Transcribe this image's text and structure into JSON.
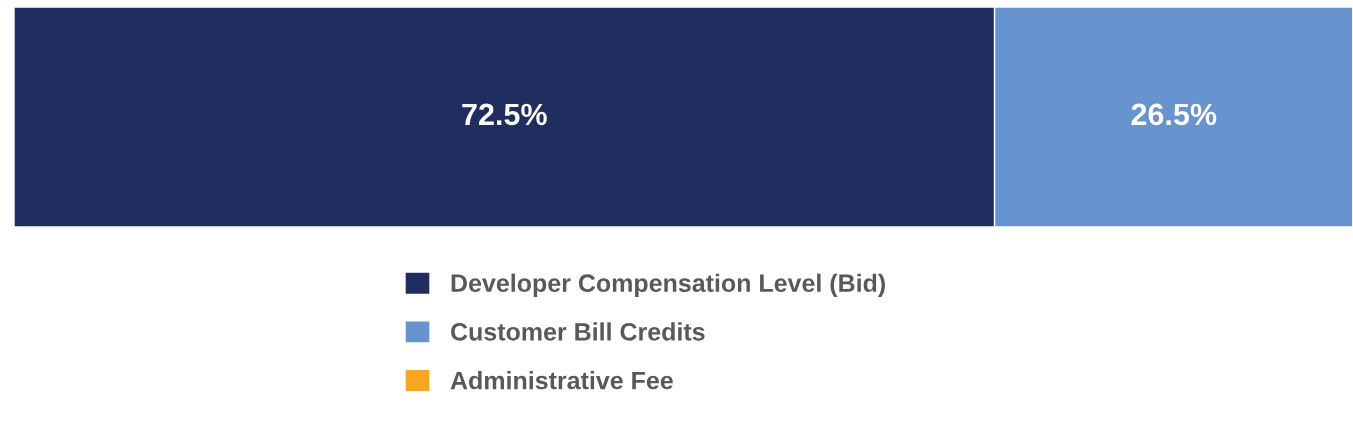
{
  "chart_data": {
    "type": "bar",
    "orientation": "horizontal",
    "stacked": true,
    "categories": [
      null
    ],
    "series": [
      {
        "name": "Developer Compensation Level (Bid)",
        "color": "#1f2e5f",
        "values": [
          72.5
        ],
        "value_labels": [
          "72.5%"
        ]
      },
      {
        "name": "Customer Bill Credits",
        "color": "#6794cf",
        "values": [
          26.5
        ],
        "value_labels": [
          "26.5%"
        ]
      },
      {
        "name": "Administrative Fee",
        "color": "#f5a623",
        "values": [
          null
        ],
        "value_labels": [
          null
        ]
      }
    ],
    "legend": "bottom"
  }
}
